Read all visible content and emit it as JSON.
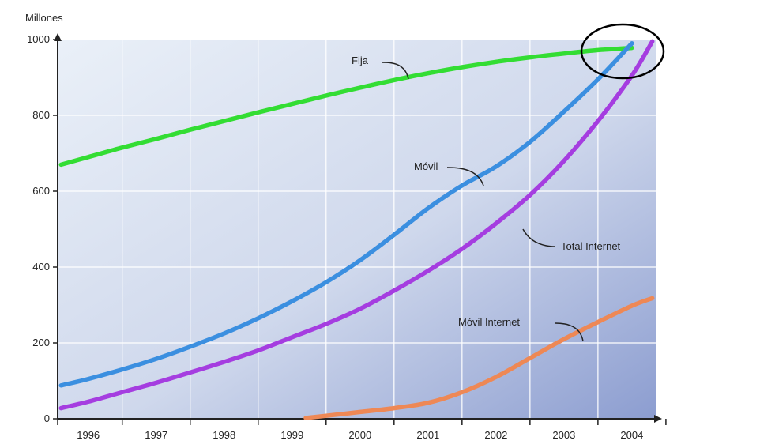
{
  "chart_data": {
    "type": "line",
    "title": "",
    "xlabel": "",
    "ylabel": "Millones",
    "x": [
      1995.6,
      1996,
      1996.5,
      1997,
      1997.5,
      1998,
      1998.5,
      1999,
      1999.5,
      2000,
      2000.5,
      2001,
      2001.5,
      2002,
      2002.5,
      2003,
      2003.5,
      2004,
      2004.3
    ],
    "x_categories": [
      "1996",
      "1997",
      "1998",
      "1999",
      "2000",
      "2001",
      "2002",
      "2003",
      "2004"
    ],
    "ylim": [
      0,
      1000
    ],
    "yticks": [
      0,
      200,
      400,
      600,
      800,
      1000
    ],
    "grid": true,
    "series": [
      {
        "name": "Fija",
        "color": "#33dd33",
        "points": [
          [
            1995.6,
            670
          ],
          [
            1996,
            690
          ],
          [
            1996.5,
            715
          ],
          [
            1997,
            738
          ],
          [
            1997.5,
            762
          ],
          [
            1998,
            785
          ],
          [
            1998.5,
            808
          ],
          [
            1999,
            830
          ],
          [
            1999.5,
            852
          ],
          [
            2000,
            873
          ],
          [
            2000.5,
            893
          ],
          [
            2001,
            911
          ],
          [
            2001.5,
            927
          ],
          [
            2002,
            941
          ],
          [
            2002.5,
            953
          ],
          [
            2003,
            963
          ],
          [
            2003.5,
            972
          ],
          [
            2004,
            978
          ]
        ]
      },
      {
        "name": "Móvil",
        "color": "#3b8fe0",
        "points": [
          [
            1995.6,
            88
          ],
          [
            1996,
            105
          ],
          [
            1996.5,
            130
          ],
          [
            1997,
            158
          ],
          [
            1997.5,
            190
          ],
          [
            1998,
            225
          ],
          [
            1998.5,
            265
          ],
          [
            1999,
            310
          ],
          [
            1999.5,
            360
          ],
          [
            2000,
            418
          ],
          [
            2000.5,
            485
          ],
          [
            2001,
            555
          ],
          [
            2001.5,
            615
          ],
          [
            2002,
            665
          ],
          [
            2002.5,
            730
          ],
          [
            2003,
            810
          ],
          [
            2003.5,
            895
          ],
          [
            2004,
            990
          ]
        ]
      },
      {
        "name": "Total Internet",
        "color": "#a53de0",
        "points": [
          [
            1995.6,
            28
          ],
          [
            1996,
            45
          ],
          [
            1996.5,
            70
          ],
          [
            1997,
            95
          ],
          [
            1997.5,
            122
          ],
          [
            1998,
            150
          ],
          [
            1998.5,
            180
          ],
          [
            1999,
            215
          ],
          [
            1999.5,
            250
          ],
          [
            2000,
            290
          ],
          [
            2000.5,
            338
          ],
          [
            2001,
            390
          ],
          [
            2001.5,
            448
          ],
          [
            2002,
            515
          ],
          [
            2002.5,
            590
          ],
          [
            2003,
            680
          ],
          [
            2003.5,
            785
          ],
          [
            2004,
            905
          ],
          [
            2004.3,
            995
          ]
        ]
      },
      {
        "name": "Móvil Internet",
        "color": "#ee8855",
        "points": [
          [
            1999.2,
            2
          ],
          [
            1999.5,
            8
          ],
          [
            2000,
            18
          ],
          [
            2000.5,
            28
          ],
          [
            2001,
            42
          ],
          [
            2001.5,
            70
          ],
          [
            2002,
            110
          ],
          [
            2002.5,
            160
          ],
          [
            2003,
            210
          ],
          [
            2003.5,
            255
          ],
          [
            2004,
            298
          ],
          [
            2004.3,
            318
          ]
        ]
      }
    ],
    "annotations": [
      {
        "text": "Fija",
        "series": "Fija"
      },
      {
        "text": "Móvil",
        "series": "Móvil"
      },
      {
        "text": "Total Internet",
        "series": "Total Internet"
      },
      {
        "text": "Móvil Internet",
        "series": "Móvil Internet"
      }
    ],
    "highlight": {
      "shape": "ellipse",
      "around": "convergence near 1000 in 2004",
      "color": "#000000"
    },
    "background": {
      "gradient_from": "#e8eef7",
      "gradient_to": "#8fa0d2",
      "grid_color": "#ffffff",
      "axis_color": "#222222"
    }
  }
}
